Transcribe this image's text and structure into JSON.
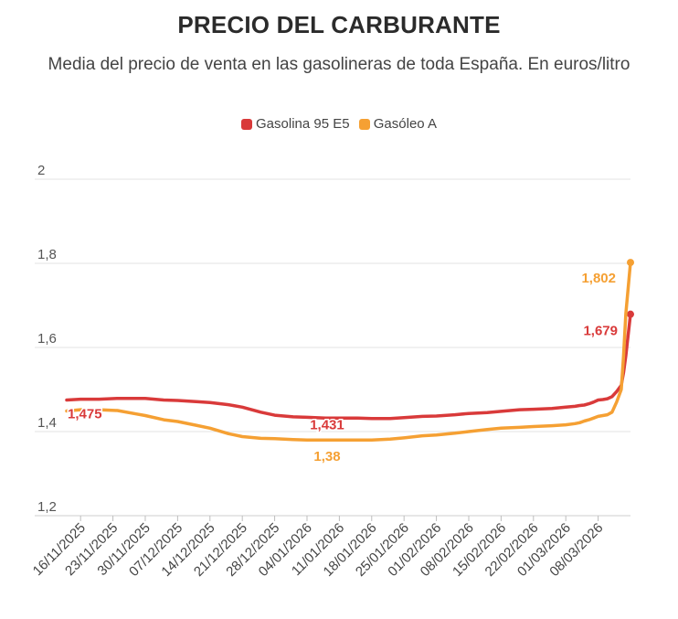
{
  "chart_data": {
    "type": "line",
    "title": "PRECIO DEL CARBURANTE",
    "subtitle": "Media del precio de venta en las gasolineras de toda España. En euros/litro",
    "xlabel": "",
    "ylabel": "",
    "ylim": [
      1.2,
      2.0
    ],
    "yticks": [
      1.2,
      1.4,
      1.6,
      1.8,
      2.0
    ],
    "ytick_labels": [
      "1,2",
      "1,4",
      "1,6",
      "1,8",
      "2"
    ],
    "grid": true,
    "legend_position": "top-center",
    "x_tick_labels": [
      "16/11/2025",
      "23/11/2025",
      "30/11/2025",
      "07/12/2025",
      "14/12/2025",
      "21/12/2025",
      "28/12/2025",
      "04/01/2026",
      "11/01/2026",
      "18/01/2026",
      "25/01/2026",
      "01/02/2026",
      "08/02/2026",
      "15/02/2026",
      "22/02/2026",
      "01/03/2026",
      "08/03/2026"
    ],
    "x_range_days": [
      -3,
      119
    ],
    "series": [
      {
        "name": "Gasolina 95 E5",
        "color": "#d93a3a",
        "x_days": [
          -3,
          0,
          4,
          8,
          12,
          14,
          18,
          21,
          25,
          28,
          32,
          35,
          39,
          42,
          46,
          49,
          53,
          56,
          60,
          63,
          67,
          70,
          74,
          77,
          81,
          84,
          88,
          91,
          95,
          98,
          102,
          105,
          107,
          108,
          109,
          110,
          111,
          112,
          113,
          114,
          115,
          116,
          117,
          117.5,
          118,
          119
        ],
        "values": [
          1.475,
          1.477,
          1.477,
          1.479,
          1.479,
          1.479,
          1.475,
          1.474,
          1.471,
          1.469,
          1.464,
          1.458,
          1.446,
          1.439,
          1.435,
          1.434,
          1.432,
          1.432,
          1.432,
          1.431,
          1.431,
          1.433,
          1.436,
          1.437,
          1.44,
          1.443,
          1.445,
          1.448,
          1.452,
          1.453,
          1.455,
          1.458,
          1.46,
          1.462,
          1.463,
          1.466,
          1.47,
          1.475,
          1.476,
          1.478,
          1.483,
          1.495,
          1.51,
          1.54,
          1.58,
          1.679
        ],
        "label": "1,679",
        "start_label": "1,475"
      },
      {
        "name": "Gasóleo A",
        "color": "#f5a033",
        "x_days": [
          -3,
          0,
          4,
          8,
          12,
          14,
          18,
          21,
          25,
          28,
          32,
          35,
          39,
          42,
          46,
          49,
          53,
          56,
          60,
          63,
          67,
          70,
          74,
          77,
          81,
          84,
          88,
          91,
          95,
          98,
          102,
          105,
          107,
          108,
          109,
          110,
          111,
          112,
          113,
          114,
          115,
          116,
          117,
          117.5,
          118,
          119
        ],
        "values": [
          1.449,
          1.452,
          1.452,
          1.45,
          1.442,
          1.438,
          1.428,
          1.424,
          1.415,
          1.408,
          1.395,
          1.388,
          1.384,
          1.383,
          1.381,
          1.38,
          1.38,
          1.38,
          1.38,
          1.38,
          1.382,
          1.385,
          1.39,
          1.392,
          1.396,
          1.4,
          1.405,
          1.408,
          1.41,
          1.412,
          1.414,
          1.416,
          1.419,
          1.421,
          1.425,
          1.428,
          1.432,
          1.436,
          1.438,
          1.44,
          1.446,
          1.47,
          1.5,
          1.58,
          1.68,
          1.802
        ],
        "label": "1,802",
        "mid_label": "1,38"
      }
    ],
    "annotations": [
      {
        "series": 0,
        "x_day": 49,
        "text": "1,431"
      },
      {
        "series": 1,
        "x_day": 49,
        "text": "1,38"
      }
    ]
  }
}
